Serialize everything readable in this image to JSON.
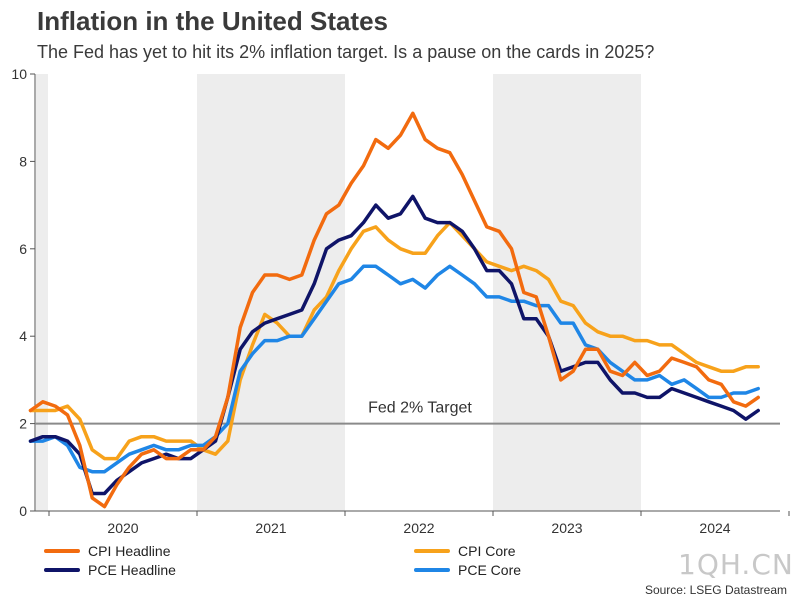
{
  "header": {
    "title": "Inflation in the United States",
    "subtitle": "The Fed has yet to hit its 2% inflation target. Is a pause on the cards in 2025?"
  },
  "source": "Source: LSEG Datastream",
  "watermark": "1QH.CN",
  "chart_data": {
    "type": "line",
    "ylim": [
      0,
      10
    ],
    "yticks": [
      0,
      2,
      4,
      6,
      8,
      10
    ],
    "x_labels": [
      "2020",
      "2021",
      "2022",
      "2023",
      "2024"
    ],
    "shaded_years": [
      "2021",
      "2023"
    ],
    "reference_line": {
      "value": 2,
      "label": "Fed 2% Target"
    },
    "x": [
      "2019-11",
      "2019-12",
      "2020-01",
      "2020-02",
      "2020-03",
      "2020-04",
      "2020-05",
      "2020-06",
      "2020-07",
      "2020-08",
      "2020-09",
      "2020-10",
      "2020-11",
      "2020-12",
      "2021-01",
      "2021-02",
      "2021-03",
      "2021-04",
      "2021-05",
      "2021-06",
      "2021-07",
      "2021-08",
      "2021-09",
      "2021-10",
      "2021-11",
      "2021-12",
      "2022-01",
      "2022-02",
      "2022-03",
      "2022-04",
      "2022-05",
      "2022-06",
      "2022-07",
      "2022-08",
      "2022-09",
      "2022-10",
      "2022-11",
      "2022-12",
      "2023-01",
      "2023-02",
      "2023-03",
      "2023-04",
      "2023-05",
      "2023-06",
      "2023-07",
      "2023-08",
      "2023-09",
      "2023-10",
      "2023-11",
      "2023-12",
      "2024-01",
      "2024-02",
      "2024-03",
      "2024-04",
      "2024-05",
      "2024-06",
      "2024-07",
      "2024-08",
      "2024-09",
      "2024-10"
    ],
    "series": [
      {
        "name": "CPI Headline",
        "color": "#f26b0f",
        "values": [
          2.3,
          2.5,
          2.4,
          2.2,
          1.5,
          0.3,
          0.1,
          0.6,
          1.0,
          1.3,
          1.4,
          1.2,
          1.2,
          1.4,
          1.4,
          1.7,
          2.6,
          4.2,
          5.0,
          5.4,
          5.4,
          5.3,
          5.4,
          6.2,
          6.8,
          7.0,
          7.5,
          7.9,
          8.5,
          8.3,
          8.6,
          9.1,
          8.5,
          8.3,
          8.2,
          7.7,
          7.1,
          6.5,
          6.4,
          6.0,
          5.0,
          4.9,
          4.0,
          3.0,
          3.2,
          3.7,
          3.7,
          3.2,
          3.1,
          3.4,
          3.1,
          3.2,
          3.5,
          3.4,
          3.3,
          3.0,
          2.9,
          2.5,
          2.4,
          2.6
        ]
      },
      {
        "name": "CPI Core",
        "color": "#f7a21b",
        "values": [
          2.3,
          2.3,
          2.3,
          2.4,
          2.1,
          1.4,
          1.2,
          1.2,
          1.6,
          1.7,
          1.7,
          1.6,
          1.6,
          1.6,
          1.4,
          1.3,
          1.6,
          3.0,
          3.8,
          4.5,
          4.3,
          4.0,
          4.0,
          4.6,
          4.9,
          5.5,
          6.0,
          6.4,
          6.5,
          6.2,
          6.0,
          5.9,
          5.9,
          6.3,
          6.6,
          6.3,
          6.0,
          5.7,
          5.6,
          5.5,
          5.6,
          5.5,
          5.3,
          4.8,
          4.7,
          4.3,
          4.1,
          4.0,
          4.0,
          3.9,
          3.9,
          3.8,
          3.8,
          3.6,
          3.4,
          3.3,
          3.2,
          3.2,
          3.3,
          3.3
        ]
      },
      {
        "name": "PCE Headline",
        "color": "#0f1468",
        "values": [
          1.6,
          1.7,
          1.7,
          1.6,
          1.3,
          0.4,
          0.4,
          0.7,
          0.9,
          1.1,
          1.2,
          1.3,
          1.2,
          1.2,
          1.4,
          1.6,
          2.6,
          3.7,
          4.1,
          4.3,
          4.4,
          4.5,
          4.6,
          5.2,
          6.0,
          6.2,
          6.3,
          6.6,
          7.0,
          6.7,
          6.8,
          7.2,
          6.7,
          6.6,
          6.6,
          6.4,
          6.0,
          5.5,
          5.5,
          5.2,
          4.4,
          4.4,
          4.0,
          3.2,
          3.3,
          3.4,
          3.4,
          3.0,
          2.7,
          2.7,
          2.6,
          2.6,
          2.8,
          2.7,
          2.6,
          2.5,
          2.4,
          2.3,
          2.1,
          2.3
        ]
      },
      {
        "name": "PCE Core",
        "color": "#1f86e6",
        "values": [
          1.6,
          1.6,
          1.7,
          1.5,
          1.0,
          0.9,
          0.9,
          1.1,
          1.3,
          1.4,
          1.5,
          1.4,
          1.4,
          1.5,
          1.5,
          1.7,
          2.0,
          3.2,
          3.6,
          3.9,
          3.9,
          4.0,
          4.0,
          4.4,
          4.8,
          5.2,
          5.3,
          5.6,
          5.6,
          5.4,
          5.2,
          5.3,
          5.1,
          5.4,
          5.6,
          5.4,
          5.2,
          4.9,
          4.9,
          4.8,
          4.8,
          4.7,
          4.7,
          4.3,
          4.3,
          3.8,
          3.7,
          3.4,
          3.2,
          3.0,
          3.0,
          3.1,
          2.9,
          3.0,
          2.8,
          2.6,
          2.6,
          2.7,
          2.7,
          2.8
        ]
      }
    ]
  }
}
